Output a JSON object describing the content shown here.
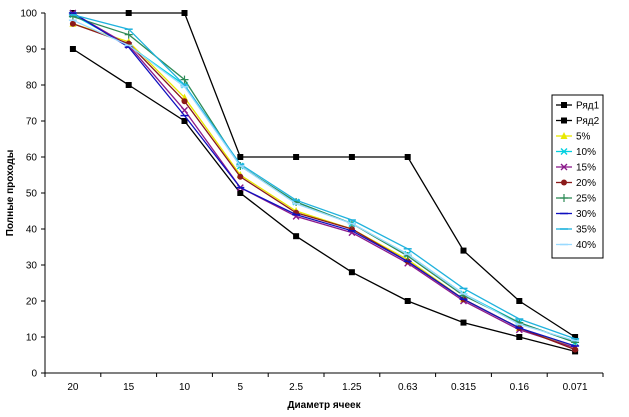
{
  "chart_data": {
    "type": "line",
    "title": "",
    "xlabel": "Диаметр ячеек",
    "ylabel": "Полные проходы",
    "categories": [
      "20",
      "15",
      "10",
      "5",
      "2.5",
      "1.25",
      "0.63",
      "0.315",
      "0.16",
      "0.071"
    ],
    "ylim": [
      0,
      100
    ],
    "yticks": [
      0,
      10,
      20,
      30,
      40,
      50,
      60,
      70,
      80,
      90,
      100
    ],
    "grid": false,
    "legend_position": "right",
    "series": [
      {
        "name": "Ряд1",
        "color": "#000000",
        "marker": "square",
        "values": [
          100,
          100,
          100,
          60,
          60,
          60,
          60,
          34,
          20,
          10
        ]
      },
      {
        "name": "Ряд2",
        "color": "#000000",
        "marker": "square",
        "values": [
          90,
          80,
          70,
          50,
          38,
          28,
          20,
          14,
          10,
          6
        ]
      },
      {
        "name": "5%",
        "color": "#e8e800",
        "marker": "triangle",
        "values": [
          97,
          92,
          76.5,
          55,
          45,
          40,
          31.5,
          20.5,
          12.5,
          7
        ]
      },
      {
        "name": "10%",
        "color": "#00d0e0",
        "marker": "x",
        "values": [
          99.5,
          91,
          80,
          57.5,
          47.5,
          41.5,
          33,
          22,
          14,
          8.5
        ]
      },
      {
        "name": "15%",
        "color": "#8b1a8b",
        "marker": "x",
        "values": [
          100,
          91,
          73,
          51.5,
          43.5,
          39,
          30.5,
          20,
          12,
          7
        ]
      },
      {
        "name": "20%",
        "color": "#8b1a1a",
        "marker": "circle",
        "values": [
          97,
          91.5,
          75.5,
          54.5,
          44.5,
          40,
          31,
          20.5,
          12.5,
          6.5
        ]
      },
      {
        "name": "25%",
        "color": "#2e8b57",
        "marker": "plus",
        "values": [
          99,
          94,
          81.5,
          57.5,
          47.5,
          41.5,
          32.5,
          21.5,
          14,
          8.5
        ]
      },
      {
        "name": "30%",
        "color": "#1010c0",
        "marker": "dash",
        "values": [
          100,
          90.5,
          71.5,
          51.5,
          44,
          39.5,
          31,
          20.5,
          12.5,
          7.5
        ]
      },
      {
        "name": "35%",
        "color": "#20b2dd",
        "marker": "dash",
        "values": [
          99.5,
          95.5,
          80,
          58,
          48,
          42.5,
          34.5,
          23.5,
          15,
          9.5
        ]
      },
      {
        "name": "40%",
        "color": "#9adaff",
        "marker": "dash",
        "values": [
          98,
          91,
          79.5,
          57.5,
          47,
          41.5,
          33,
          22,
          13.5,
          9
        ]
      }
    ]
  }
}
